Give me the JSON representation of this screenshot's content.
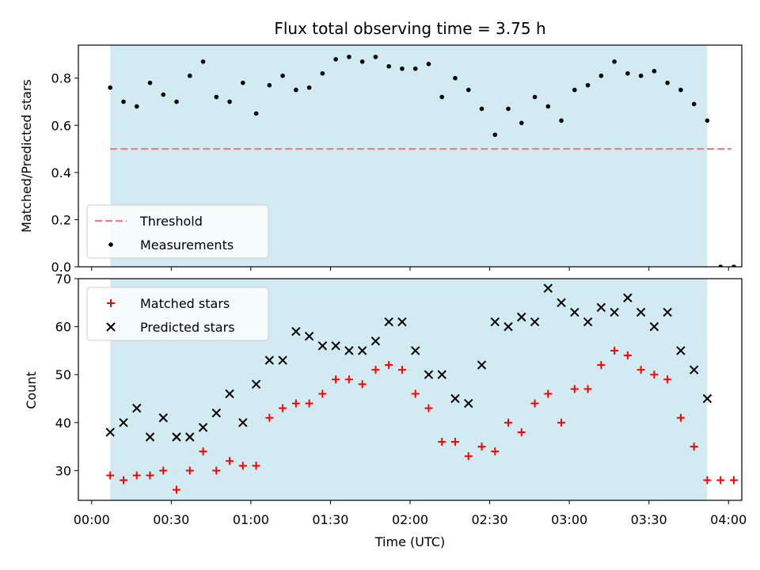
{
  "chart_data": [
    {
      "type": "scatter",
      "title": "Flux total observing time = 3.75 h",
      "ylabel": "Matched/Predicted stars",
      "xlabel": "",
      "x_unit": "minutes after 00:00 UTC",
      "xlim": [
        -5,
        245
      ],
      "ylim": [
        0,
        0.94
      ],
      "yticks": [
        "0.0",
        "0.2",
        "0.4",
        "0.6",
        "0.8"
      ],
      "shaded_range": [
        7,
        232
      ],
      "shade_color": "#add8e6",
      "threshold": {
        "name": "Threshold",
        "y": 0.5,
        "x_range": [
          7,
          241
        ],
        "color": "#f08080"
      },
      "legend": {
        "placement": "lower-left",
        "entries": [
          "Threshold",
          "Measurements"
        ]
      },
      "series": [
        {
          "name": "Measurements",
          "color": "#000000",
          "x": [
            7,
            12,
            17,
            22,
            27,
            32,
            37,
            42,
            47,
            52,
            57,
            62,
            67,
            72,
            77,
            82,
            87,
            92,
            97,
            102,
            107,
            112,
            117,
            122,
            127,
            132,
            137,
            142,
            147,
            152,
            157,
            162,
            167,
            172,
            177,
            182,
            187,
            192,
            197,
            202,
            207,
            212,
            217,
            222,
            227,
            232,
            237,
            242
          ],
          "y": [
            0.76,
            0.7,
            0.68,
            0.78,
            0.73,
            0.7,
            0.81,
            0.87,
            0.72,
            0.7,
            0.78,
            0.65,
            0.77,
            0.81,
            0.75,
            0.76,
            0.82,
            0.88,
            0.89,
            0.87,
            0.89,
            0.85,
            0.84,
            0.84,
            0.86,
            0.72,
            0.8,
            0.75,
            0.67,
            0.56,
            0.67,
            0.61,
            0.72,
            0.68,
            0.62,
            0.75,
            0.77,
            0.81,
            0.87,
            0.82,
            0.81,
            0.83,
            0.78,
            0.75,
            0.69,
            0.62,
            0.0,
            0.0
          ]
        }
      ]
    },
    {
      "type": "scatter",
      "title": "",
      "ylabel": "Count",
      "xlabel": "Time (UTC)",
      "x_unit": "minutes after 00:00 UTC",
      "xlim": [
        -5,
        245
      ],
      "ylim": [
        23.8,
        70
      ],
      "yticks": [
        "30",
        "40",
        "50",
        "60",
        "70"
      ],
      "xticks": [
        {
          "label": "00:00",
          "value": 0
        },
        {
          "label": "00:30",
          "value": 30
        },
        {
          "label": "01:00",
          "value": 60
        },
        {
          "label": "01:30",
          "value": 90
        },
        {
          "label": "02:00",
          "value": 120
        },
        {
          "label": "02:30",
          "value": 150
        },
        {
          "label": "03:00",
          "value": 180
        },
        {
          "label": "03:30",
          "value": 210
        },
        {
          "label": "04:00",
          "value": 240
        }
      ],
      "shaded_range": [
        7,
        232
      ],
      "shade_color": "#add8e6",
      "legend": {
        "placement": "upper-left",
        "entries": [
          "Matched stars",
          "Predicted stars"
        ]
      },
      "series": [
        {
          "name": "Matched stars",
          "marker": "plus",
          "color": "#ff0000",
          "x": [
            7,
            12,
            17,
            22,
            27,
            32,
            37,
            42,
            47,
            52,
            57,
            62,
            67,
            72,
            77,
            82,
            87,
            92,
            97,
            102,
            107,
            112,
            117,
            122,
            127,
            132,
            137,
            142,
            147,
            152,
            157,
            162,
            167,
            172,
            177,
            182,
            187,
            192,
            197,
            202,
            207,
            212,
            217,
            222,
            227,
            232,
            237,
            242
          ],
          "y": [
            29,
            28,
            29,
            29,
            30,
            26,
            30,
            34,
            30,
            32,
            31,
            31,
            41,
            43,
            44,
            44,
            46,
            49,
            49,
            48,
            51,
            52,
            51,
            46,
            43,
            36,
            36,
            33,
            35,
            34,
            40,
            38,
            44,
            46,
            40,
            47,
            47,
            52,
            55,
            54,
            51,
            50,
            49,
            41,
            35,
            28,
            28,
            28
          ]
        },
        {
          "name": "Predicted stars",
          "marker": "x",
          "color": "#000000",
          "x": [
            7,
            12,
            17,
            22,
            27,
            32,
            37,
            42,
            47,
            52,
            57,
            62,
            67,
            72,
            77,
            82,
            87,
            92,
            97,
            102,
            107,
            112,
            117,
            122,
            127,
            132,
            137,
            142,
            147,
            152,
            157,
            162,
            167,
            172,
            177,
            182,
            187,
            192,
            197,
            202,
            207,
            212,
            217,
            222,
            227,
            232
          ],
          "y": [
            38,
            40,
            43,
            37,
            41,
            37,
            37,
            39,
            42,
            46,
            40,
            48,
            53,
            53,
            59,
            58,
            56,
            56,
            55,
            55,
            57,
            61,
            61,
            55,
            50,
            50,
            45,
            44,
            52,
            61,
            60,
            62,
            61,
            68,
            65,
            63,
            61,
            64,
            63,
            66,
            63,
            60,
            63,
            55,
            51,
            45
          ]
        }
      ]
    }
  ]
}
